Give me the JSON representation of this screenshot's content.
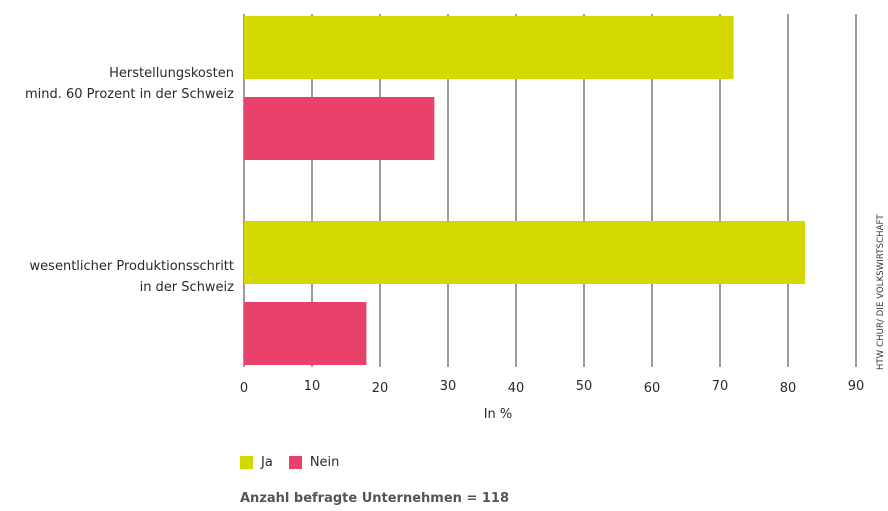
{
  "chart_data": {
    "type": "bar",
    "orientation": "horizontal",
    "categories": [
      [
        "Herstellungskosten",
        "mind. 60 Prozent in der Schweiz"
      ],
      [
        "wesentlicher Produktionsschritt",
        "in der Schweiz"
      ]
    ],
    "series": [
      {
        "name": "Ja",
        "values": [
          72,
          82.5
        ],
        "color": "#d2d800"
      },
      {
        "name": "Nein",
        "values": [
          28,
          18
        ],
        "color": "#e8426a"
      }
    ],
    "xlim": [
      0,
      90
    ],
    "xticks": [
      0,
      10,
      20,
      30,
      40,
      50,
      60,
      70,
      80,
      90
    ],
    "xlabel": "In %",
    "grid": true,
    "legend_position": "bottom-left"
  },
  "note": "Anzahl befragte Unternehmen = 118",
  "source": "HTW CHUR/ DIE VOLKSWIRTSCHAFT"
}
